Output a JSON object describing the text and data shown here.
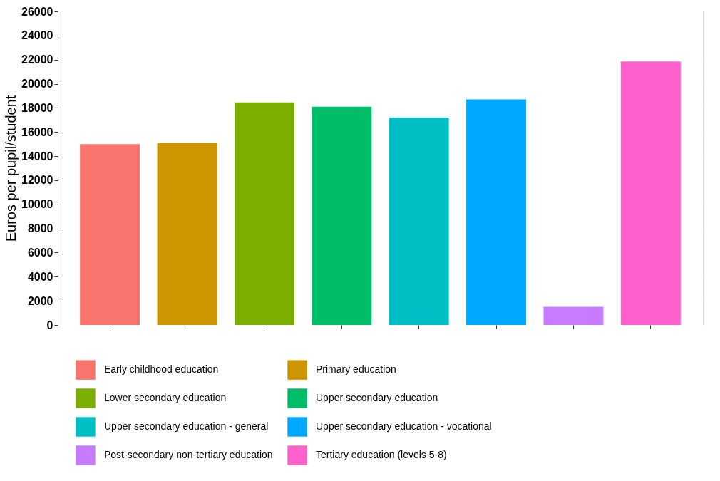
{
  "chart_data": {
    "type": "bar",
    "ylabel": "Euros per pupil/student",
    "categories": [
      null,
      null,
      null,
      null,
      null,
      null,
      null,
      null
    ],
    "series": [
      {
        "name": "Early childhood education",
        "color": "#f8766d",
        "values": [
          15000,
          null,
          null,
          null,
          null,
          null,
          null,
          null
        ]
      },
      {
        "name": "Primary education",
        "color": "#cd9600",
        "values": [
          null,
          15100,
          null,
          null,
          null,
          null,
          null,
          null
        ]
      },
      {
        "name": "Lower secondary education",
        "color": "#7cae00",
        "values": [
          null,
          null,
          18450,
          null,
          null,
          null,
          null,
          null
        ]
      },
      {
        "name": "Upper secondary education",
        "color": "#00be67",
        "values": [
          null,
          null,
          null,
          18100,
          null,
          null,
          null,
          null
        ]
      },
      {
        "name": "Upper secondary education - general",
        "color": "#00bfc4",
        "values": [
          null,
          null,
          null,
          null,
          17200,
          null,
          null,
          null
        ]
      },
      {
        "name": "Upper secondary education - vocational",
        "color": "#00a9ff",
        "values": [
          null,
          null,
          null,
          null,
          null,
          18700,
          null,
          null
        ]
      },
      {
        "name": "Post-secondary non-tertiary education",
        "color": "#c77cff",
        "values": [
          null,
          null,
          null,
          null,
          null,
          null,
          1500,
          null
        ]
      },
      {
        "name": "Tertiary education (levels 5-8)",
        "color": "#ff61cc",
        "values": [
          null,
          null,
          null,
          null,
          null,
          null,
          null,
          21850
        ]
      }
    ],
    "ylim": [
      0,
      26000
    ],
    "yticks": [
      0,
      2000,
      4000,
      6000,
      8000,
      10000,
      12000,
      14000,
      16000,
      18000,
      20000,
      22000,
      24000,
      26000
    ],
    "grid": true,
    "legend": "bottom",
    "tick_labels": "y"
  }
}
